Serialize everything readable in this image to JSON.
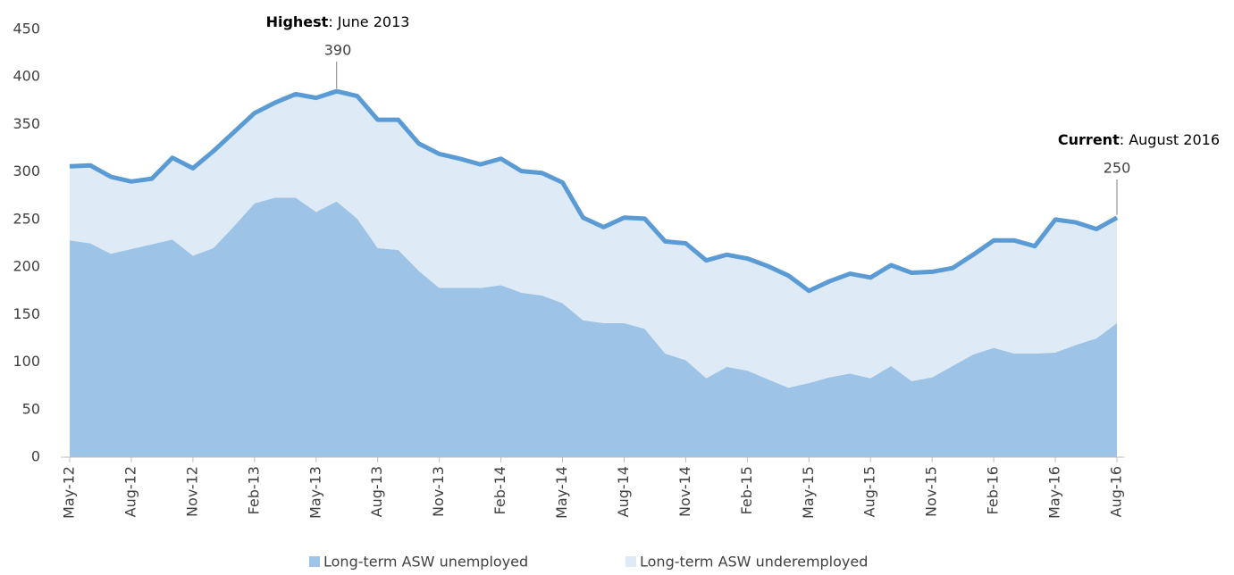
{
  "chart_data": {
    "type": "stacked-area",
    "categories": [
      "May-12",
      null,
      null,
      "Aug-12",
      null,
      null,
      "Nov-12",
      null,
      null,
      "Feb-13",
      null,
      null,
      "May-13",
      null,
      null,
      "Aug-13",
      null,
      null,
      "Nov-13",
      null,
      null,
      "Feb-14",
      null,
      null,
      "May-14",
      null,
      null,
      "Aug-14",
      null,
      null,
      "Nov-14",
      null,
      null,
      "Feb-15",
      null,
      null,
      "May-15",
      null,
      null,
      "Aug-15",
      null,
      null,
      "Nov-15",
      null,
      null,
      "Feb-16",
      null,
      null,
      "May-16",
      null,
      null,
      "Aug-16"
    ],
    "series": [
      {
        "name": "Long-term ASW unemployed",
        "color": "#9dc3e6",
        "values": [
          228,
          225,
          214,
          219,
          224,
          229,
          212,
          220,
          243,
          267,
          273,
          273,
          258,
          269,
          251,
          220,
          218,
          196,
          178,
          178,
          178,
          181,
          173,
          170,
          162,
          144,
          141,
          141,
          135,
          109,
          102,
          83,
          95,
          91,
          82,
          73,
          78,
          84,
          88,
          83,
          96,
          80,
          84,
          96,
          108,
          115,
          109,
          109,
          110,
          118,
          125,
          141
        ]
      },
      {
        "name": "Long-term ASW underemployed",
        "color": "#deebf7",
        "line_color": "#5b9bd5",
        "values": [
          78,
          82,
          81,
          71,
          69,
          86,
          92,
          102,
          99,
          95,
          100,
          109,
          120,
          116,
          129,
          135,
          137,
          134,
          141,
          136,
          130,
          133,
          128,
          129,
          127,
          108,
          101,
          111,
          116,
          118,
          123,
          124,
          118,
          118,
          119,
          118,
          97,
          101,
          105,
          106,
          106,
          114,
          111,
          103,
          105,
          113,
          119,
          113,
          140,
          129,
          115,
          111
        ]
      }
    ],
    "ylim": [
      0,
      450
    ],
    "yticks": [
      0,
      50,
      100,
      150,
      200,
      250,
      300,
      350,
      400,
      450
    ],
    "annotations": [
      {
        "label": "Highest",
        "text": ": June 2013",
        "value": 390
      },
      {
        "label": "Current",
        "text": ": August 2016",
        "value": 250
      }
    ]
  }
}
